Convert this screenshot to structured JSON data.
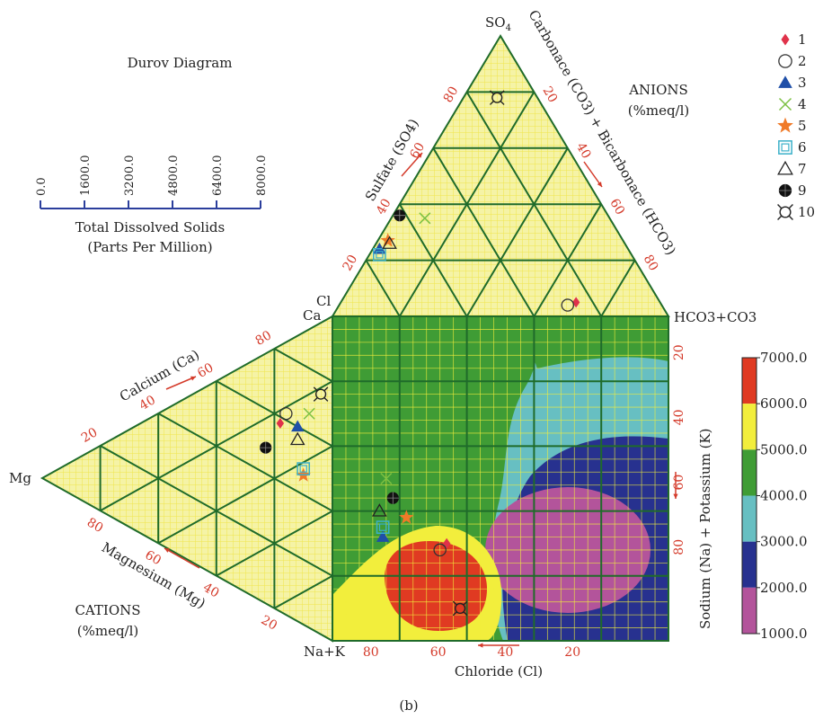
{
  "chart_data": {
    "type": "durov",
    "title": "Durov Diagram",
    "caption": "(b)",
    "tds_scale": {
      "ticks": [
        "0.0",
        "1600.0",
        "3200.0",
        "4800.0",
        "6400.0",
        "8000.0"
      ],
      "label_line1": "Total Dissolved Solids",
      "label_line2": "(Parts Per Million)"
    },
    "anions": {
      "title_line1": "ANIONS",
      "title_line2": "(%meq/l)",
      "apex_top": "SO",
      "apex_top_sub": "4",
      "apex_left": "Cl",
      "apex_right": "HCO3+CO3",
      "left_axis_label": "Sulfate (SO4)",
      "right_axis_label": "Carbonace (CO3) + Bicarbonace (HCO3)",
      "left_ticks": [
        "20",
        "40",
        "60",
        "80"
      ],
      "right_ticks": [
        "20",
        "40",
        "60",
        "80"
      ]
    },
    "cations": {
      "title_line1": "CATIONS",
      "title_line2": "(%meq/l)",
      "apex_left": "Mg",
      "apex_top": "Ca",
      "apex_bottom": "Na+K",
      "top_axis_label": "Calcium (Ca)",
      "bottom_axis_label": "Magnesium (Mg)",
      "top_ticks": [
        "20",
        "40",
        "60",
        "80"
      ],
      "bottom_ticks": [
        "20",
        "40",
        "60",
        "80"
      ]
    },
    "square": {
      "x_label": "Chloride (Cl)",
      "x_ticks": [
        "80",
        "60",
        "40",
        "20"
      ],
      "y_label": "Sodium (Na) + Potassium (K)",
      "y_ticks": [
        "20",
        "40",
        "60",
        "80"
      ]
    },
    "colorbar": {
      "ticks": [
        "7000.0",
        "6000.0",
        "5000.0",
        "4000.0",
        "3000.0",
        "2000.0",
        "1000.0"
      ],
      "colors": [
        "#e03a22",
        "#f2ee3c",
        "#3f9c35",
        "#67bfc2",
        "#27318f",
        "#b3549b"
      ]
    },
    "legend": [
      {
        "label": "1",
        "marker": "diamond",
        "color": "#e0324a"
      },
      {
        "label": "2",
        "marker": "circle",
        "color": "#333333"
      },
      {
        "label": "3",
        "marker": "triangle-filled",
        "color": "#1f4fa8"
      },
      {
        "label": "4",
        "marker": "x",
        "color": "#7cc043"
      },
      {
        "label": "5",
        "marker": "star",
        "color": "#f07a28"
      },
      {
        "label": "6",
        "marker": "square-double",
        "color": "#3bb0c9"
      },
      {
        "label": "7",
        "marker": "triangle-open",
        "color": "#222222"
      },
      {
        "label": "9",
        "marker": "circle-grid",
        "color": "#111111"
      },
      {
        "label": "10",
        "marker": "crosshair",
        "color": "#222222"
      }
    ],
    "samples": [
      {
        "id": "1",
        "anion": [
          0.25,
          0.7,
          0.05
        ],
        "cation": [
          0.58,
          0.18,
          0.24
        ],
        "square": [
          0.66,
          0.7
        ]
      },
      {
        "id": "2",
        "anion": [
          0.28,
          0.68,
          0.04
        ],
        "cation": [
          0.62,
          0.16,
          0.22
        ],
        "square": [
          0.68,
          0.72
        ]
      },
      {
        "id": "3",
        "anion": [
          0.74,
          0.02,
          0.24
        ],
        "cation": [
          0.6,
          0.12,
          0.28
        ],
        "square": [
          0.85,
          0.68
        ]
      },
      {
        "id": "4",
        "anion": [
          0.55,
          0.1,
          0.35
        ],
        "cation": [
          0.66,
          0.08,
          0.26
        ],
        "square": [
          0.84,
          0.5
        ]
      },
      {
        "id": "5",
        "anion": [
          0.7,
          0.03,
          0.27
        ],
        "cation": [
          0.46,
          0.1,
          0.44
        ],
        "square": [
          0.78,
          0.62
        ]
      },
      {
        "id": "6",
        "anion": [
          0.75,
          0.03,
          0.22
        ],
        "cation": [
          0.48,
          0.1,
          0.42
        ],
        "square": [
          0.85,
          0.65
        ]
      },
      {
        "id": "7",
        "anion": [
          0.7,
          0.04,
          0.26
        ],
        "cation": [
          0.56,
          0.12,
          0.32
        ],
        "square": [
          0.86,
          0.6
        ]
      },
      {
        "id": "9",
        "anion": [
          0.62,
          0.02,
          0.36
        ],
        "cation": [
          0.48,
          0.23,
          0.29
        ],
        "square": [
          0.82,
          0.56
        ]
      },
      {
        "id": "10",
        "anion": [
          0.12,
          0.1,
          0.78
        ],
        "cation": [
          0.74,
          0.04,
          0.22
        ],
        "square": [
          0.62,
          0.9
        ]
      }
    ]
  }
}
